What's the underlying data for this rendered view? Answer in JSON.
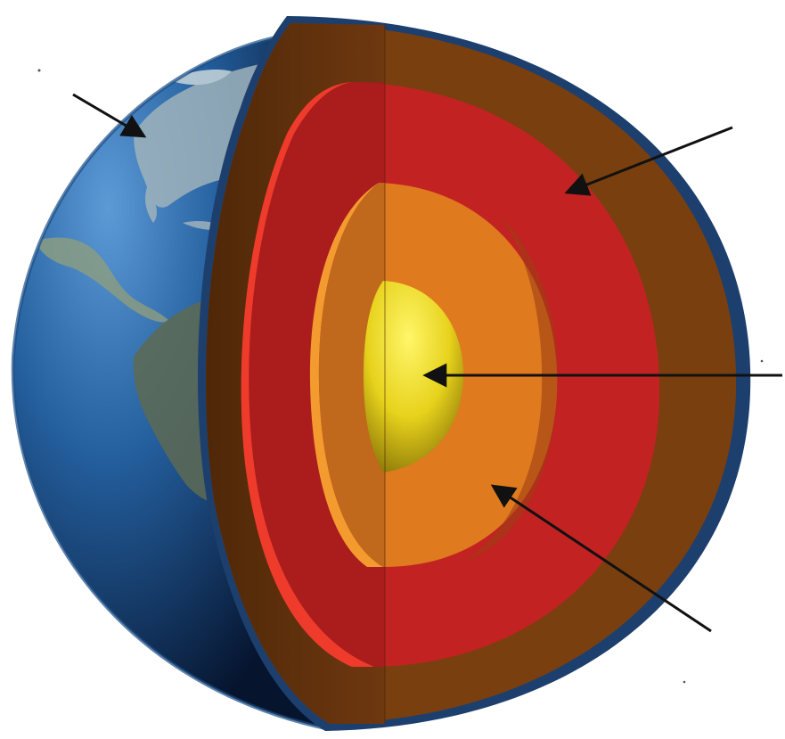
{
  "diagram": {
    "subject": "earth-interior-cutaway",
    "layers": [
      {
        "id": "crust",
        "label": ""
      },
      {
        "id": "mantle",
        "label": ""
      },
      {
        "id": "outer-core",
        "label": ""
      },
      {
        "id": "inner-core",
        "label": ""
      }
    ],
    "colors": {
      "ocean_light": "#4d8fcf",
      "ocean_dark": "#0a1f44",
      "land": "#8aa0a8",
      "crust": "#7a3f0f",
      "crust_shadow": "#5e300a",
      "mantle": "#c32222",
      "mantle_highlight": "#ef3b2c",
      "outer_core": "#e07a1e",
      "outer_core_highlight": "#f49b30",
      "inner_core_light": "#fff25a",
      "inner_core_dark": "#a8900a",
      "arrow": "#111111"
    },
    "arrows": [
      {
        "target": "crust"
      },
      {
        "target": "mantle"
      },
      {
        "target": "inner-core"
      },
      {
        "target": "outer-core"
      }
    ]
  }
}
